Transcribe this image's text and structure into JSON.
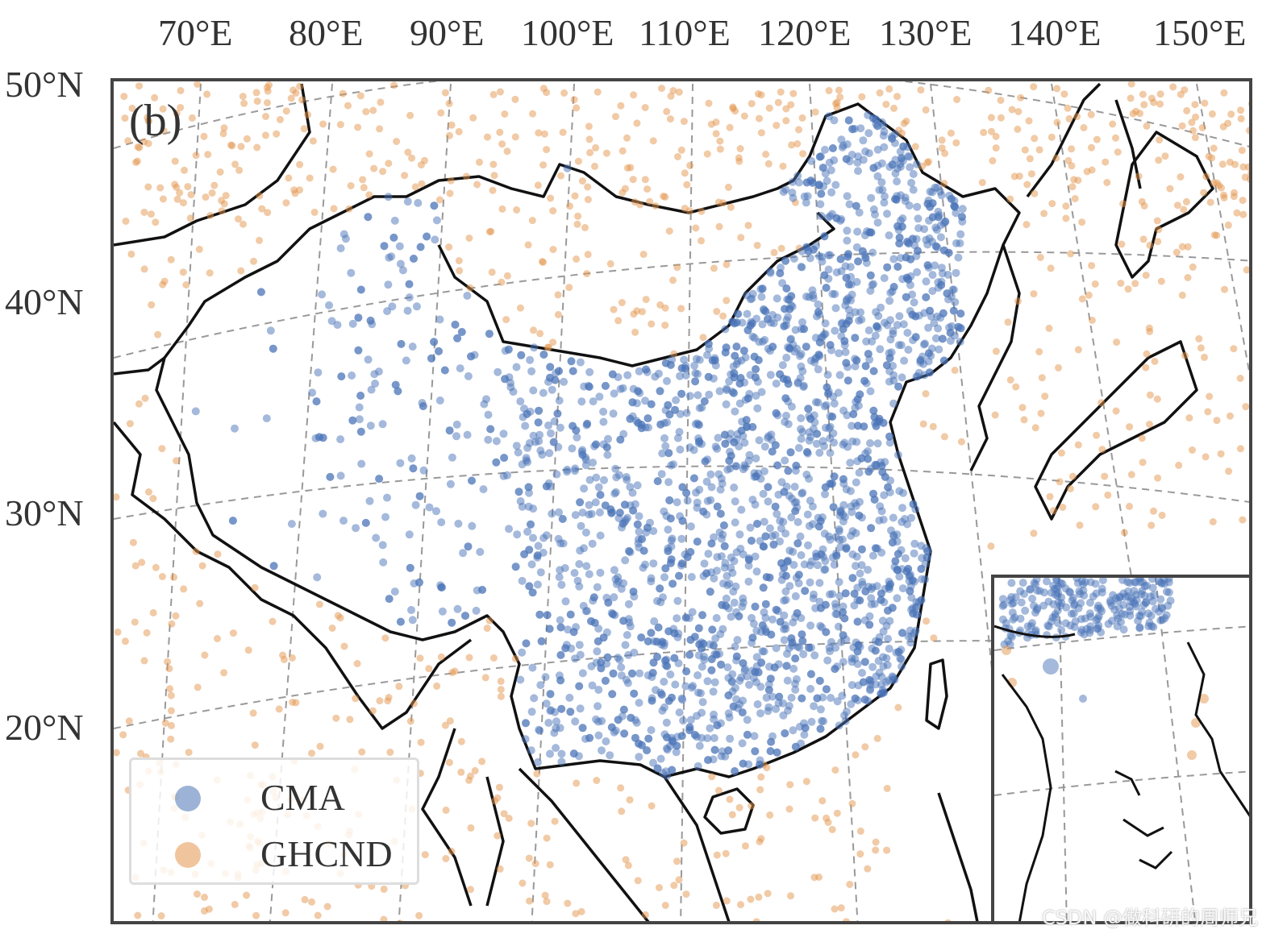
{
  "map": {
    "panel_label": "(b)",
    "longitude_labels": [
      "70°E",
      "80°E",
      "90°E",
      "100°E",
      "110°E",
      "120°E",
      "130°E",
      "140°E",
      "150°E"
    ],
    "latitude_labels": [
      "50°N",
      "40°N",
      "30°N",
      "20°N"
    ],
    "legend": [
      {
        "label": "CMA",
        "color": "#4a74b7"
      },
      {
        "label": "GHCND",
        "color": "#e3964e"
      }
    ],
    "colors": {
      "cma_points": "#4a74b7",
      "ghcnd_points": "#e3964e",
      "boundaries": "#111111",
      "graticule": "#999999",
      "frame": "#444444"
    },
    "inset": "South China Sea"
  },
  "watermark": "CSDN @做科研的周师兄"
}
